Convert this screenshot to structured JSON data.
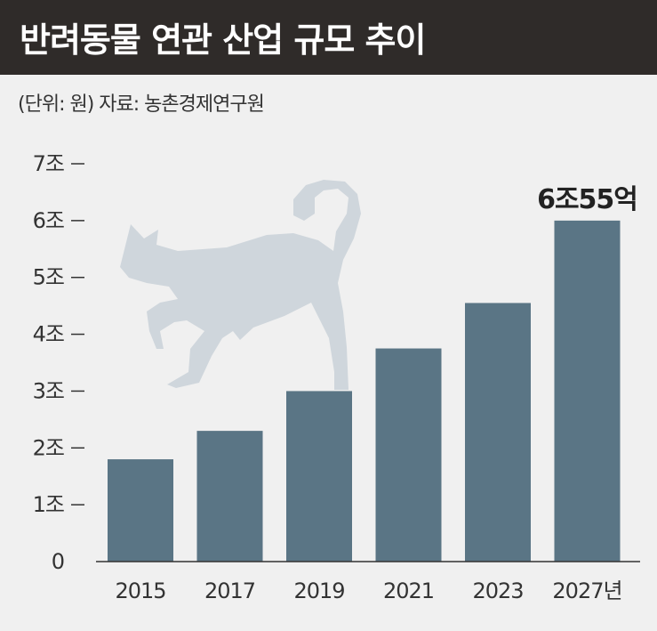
{
  "header": {
    "title": "반려동물 연관 산업 규모 추이"
  },
  "source_note": "(단위: 원) 자료: 농촌경제연구원",
  "colors": {
    "header_bg": "#2f2b29",
    "bar": "#5a7585",
    "cat_silhouette": "#cfd6dc",
    "background": "#f0f0f0"
  },
  "chart_data": {
    "type": "bar",
    "categories": [
      "2015",
      "2017",
      "2019",
      "2021",
      "2023",
      "2027년"
    ],
    "values": [
      1.8,
      2.3,
      3.0,
      3.75,
      4.55,
      6.0
    ],
    "ylim": [
      0,
      7
    ],
    "y_ticks": [
      0,
      1,
      2,
      3,
      4,
      5,
      6,
      7
    ],
    "y_tick_labels": [
      "0",
      "1조",
      "2조",
      "3조",
      "4조",
      "5조",
      "6조",
      "7조"
    ],
    "annotation": "6조55억",
    "annotation_bar_index": 5,
    "decoration": "cat-silhouette",
    "grid": false
  }
}
